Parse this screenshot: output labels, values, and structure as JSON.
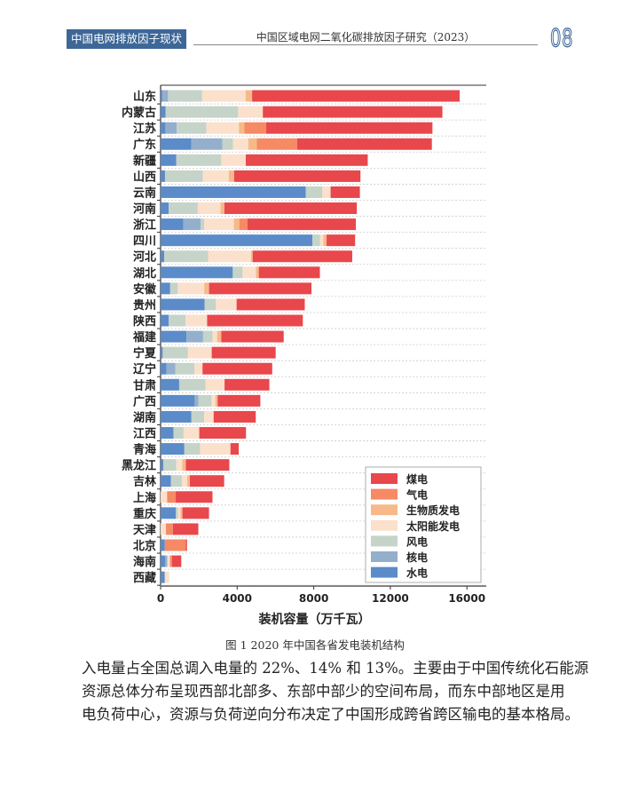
{
  "header": {
    "section": "中国电网排放因子现状",
    "title": "中国区域电网二氧化碳排放因子研究（2023）",
    "page_number": "08"
  },
  "caption": "图 1 2020 年中国各省发电装机结构",
  "body": [
    "入电量占全国总调入电量的 22%、14% 和 13%。主要由于中国传统化石能源",
    "资源总体分布呈现西部北部多、东部中部少的空间布局，而东中部地区是用",
    "电负荷中心，资源与负荷逆向分布决定了中国形成跨省跨区输电的基本格局。"
  ],
  "chart_data": {
    "type": "bar",
    "orientation": "horizontal",
    "stacked": true,
    "title": "",
    "xlabel": "装机容量（万千瓦）",
    "ylabel": "",
    "xlim": [
      0,
      16500
    ],
    "xticks": [
      0,
      4000,
      8000,
      12000,
      16000
    ],
    "xtick_labels": [
      "0",
      "4000",
      "8000",
      "12000",
      "16000"
    ],
    "grid": "horizontal dashed",
    "legend_position": "bottom-right",
    "categories": [
      "山东",
      "内蒙古",
      "江苏",
      "广东",
      "新疆",
      "山西",
      "云南",
      "河南",
      "浙江",
      "四川",
      "河北",
      "湖北",
      "安徽",
      "贵州",
      "陕西",
      "福建",
      "宁夏",
      "辽宁",
      "甘肃",
      "广西",
      "湖南",
      "江西",
      "青海",
      "黑龙江",
      "吉林",
      "上海",
      "重庆",
      "天津",
      "北京",
      "海南",
      "西藏"
    ],
    "series": [
      {
        "name": "水电",
        "color": "#5b8bc9",
        "values": [
          100,
          260,
          250,
          1610,
          820,
          230,
          7580,
          420,
          1190,
          7930,
          190,
          3770,
          500,
          2300,
          420,
          1350,
          110,
          310,
          970,
          1780,
          1610,
          670,
          1240,
          140,
          540,
          0,
          800,
          0,
          220,
          230,
          220
        ]
      },
      {
        "name": "核电",
        "color": "#93afcc",
        "values": [
          290,
          0,
          590,
          1610,
          0,
          0,
          0,
          0,
          900,
          0,
          0,
          0,
          0,
          0,
          0,
          870,
          0,
          460,
          0,
          200,
          0,
          0,
          0,
          0,
          0,
          0,
          0,
          0,
          0,
          120,
          0
        ]
      },
      {
        "name": "风电",
        "color": "#c5d3c8",
        "values": [
          1780,
          3790,
          1550,
          560,
          2350,
          1980,
          870,
          1520,
          190,
          400,
          2290,
          510,
          400,
          590,
          880,
          500,
          1320,
          990,
          1380,
          680,
          670,
          530,
          820,
          680,
          570,
          0,
          120,
          0,
          0,
          0,
          0
        ]
      },
      {
        "name": "太阳能发电",
        "color": "#fbe0cc",
        "values": [
          2270,
          1290,
          1700,
          800,
          1280,
          1350,
          430,
          1190,
          1550,
          170,
          2240,
          700,
          1380,
          1080,
          1130,
          230,
          1240,
          430,
          990,
          200,
          490,
          820,
          1590,
          310,
          280,
          340,
          110,
          280,
          0,
          140,
          230
        ]
      },
      {
        "name": "生物质发电",
        "color": "#f7b98a",
        "values": [
          340,
          0,
          290,
          450,
          0,
          280,
          0,
          200,
          280,
          170,
          90,
          150,
          250,
          0,
          0,
          220,
          0,
          0,
          0,
          120,
          0,
          0,
          0,
          190,
          140,
          0,
          110,
          0,
          0,
          0,
          0
        ]
      },
      {
        "name": "气电",
        "color": "#f58a65",
        "values": [
          0,
          0,
          1130,
          2100,
          0,
          0,
          0,
          0,
          430,
          0,
          0,
          0,
          0,
          0,
          0,
          0,
          0,
          0,
          0,
          0,
          0,
          0,
          0,
          0,
          0,
          450,
          0,
          360,
          1100,
          110,
          0
        ]
      },
      {
        "name": "煤电",
        "color": "#e8474c",
        "values": [
          10840,
          9380,
          8690,
          7040,
          6370,
          6600,
          1530,
          6920,
          5660,
          1490,
          5200,
          3190,
          5350,
          3560,
          5000,
          3260,
          3340,
          3640,
          2340,
          2230,
          2200,
          2440,
          430,
          2270,
          1790,
          1920,
          1390,
          1330,
          60,
          480,
          0
        ]
      }
    ],
    "legend_order": [
      "煤电",
      "气电",
      "生物质发电",
      "太阳能发电",
      "风电",
      "核电",
      "水电"
    ]
  }
}
